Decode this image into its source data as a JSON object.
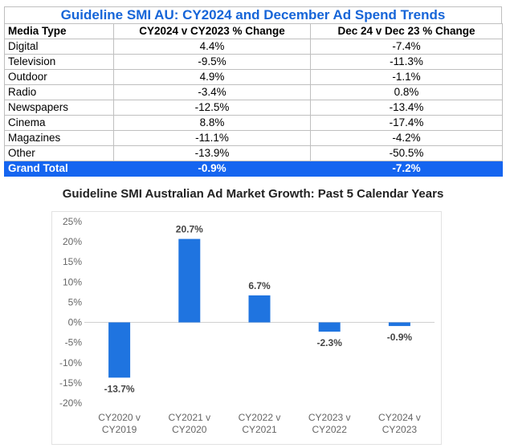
{
  "table": {
    "title": "Guideline SMI AU: CY2024 and December Ad Spend Trends",
    "headers": [
      "Media Type",
      "CY2024 v CY2023 % Change",
      "Dec 24 v Dec 23 % Change"
    ],
    "rows": [
      [
        "Digital",
        "4.4%",
        "-7.4%"
      ],
      [
        "Television",
        "-9.5%",
        "-11.3%"
      ],
      [
        "Outdoor",
        "4.9%",
        "-1.1%"
      ],
      [
        "Radio",
        "-3.4%",
        "0.8%"
      ],
      [
        "Newspapers",
        "-12.5%",
        "-13.4%"
      ],
      [
        "Cinema",
        "8.8%",
        "-17.4%"
      ],
      [
        "Magazines",
        "-11.1%",
        "-4.2%"
      ],
      [
        "Other",
        "-13.9%",
        "-50.5%"
      ]
    ],
    "total": [
      "Grand Total",
      "-0.9%",
      "-7.2%"
    ],
    "total_color": "#1565f0",
    "title_color": "#1665d8"
  },
  "chart_data": {
    "type": "bar",
    "title": "Guideline SMI Australian Ad Market Growth: Past 5 Calendar Years",
    "categories": [
      [
        "CY2020 v",
        "CY2019"
      ],
      [
        "CY2021 v",
        "CY2020"
      ],
      [
        "CY2022 v",
        "CY2021"
      ],
      [
        "CY2023 v",
        "CY2022"
      ],
      [
        "CY2024 v",
        "CY2023"
      ]
    ],
    "values": [
      -13.7,
      20.7,
      6.7,
      -2.3,
      -0.9
    ],
    "data_labels": [
      "-13.7%",
      "20.7%",
      "6.7%",
      "-2.3%",
      "-0.9%"
    ],
    "ylim": [
      -20,
      25
    ],
    "yticks": [
      25,
      20,
      15,
      10,
      5,
      0,
      -5,
      -10,
      -15,
      -20
    ],
    "ytick_labels": [
      "25%",
      "20%",
      "15%",
      "10%",
      "5%",
      "0%",
      "-5%",
      "-10%",
      "-15%",
      "-20%"
    ],
    "bar_color": "#1f74e0",
    "grid": false
  }
}
